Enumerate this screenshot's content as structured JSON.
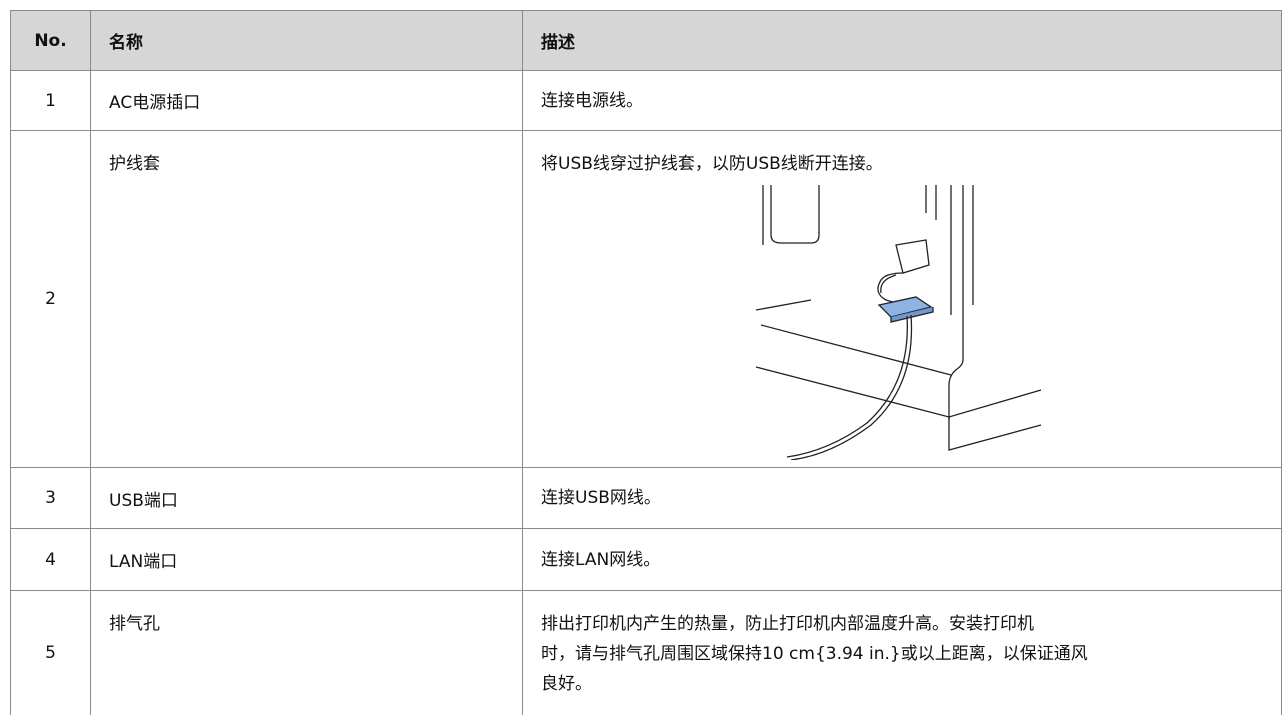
{
  "table": {
    "header": [
      "No.",
      "名称",
      "描述"
    ],
    "rows": [
      {
        "no": "1",
        "name": "AC电源插口",
        "desc": [
          "连接电源线。"
        ]
      },
      {
        "no": "2",
        "name": "护线套",
        "desc": [
          "将USB线穿过护线套，以防USB线断开连接。"
        ]
      },
      {
        "no": "3",
        "name": "USB端口",
        "desc": [
          "连接USB网线。"
        ]
      },
      {
        "no": "4",
        "name": "LAN端口",
        "desc": [
          "连接LAN网线。"
        ]
      },
      {
        "no": "5",
        "name": "排气孔",
        "desc": [
          "排出打印机内产生的热量，防止打印机内部温度升高。安装打印机",
          "时，请与排气孔周围区域保持10 cm{3.94 in.}或以上距离，以保证通风",
          "良好。"
        ]
      }
    ]
  }
}
